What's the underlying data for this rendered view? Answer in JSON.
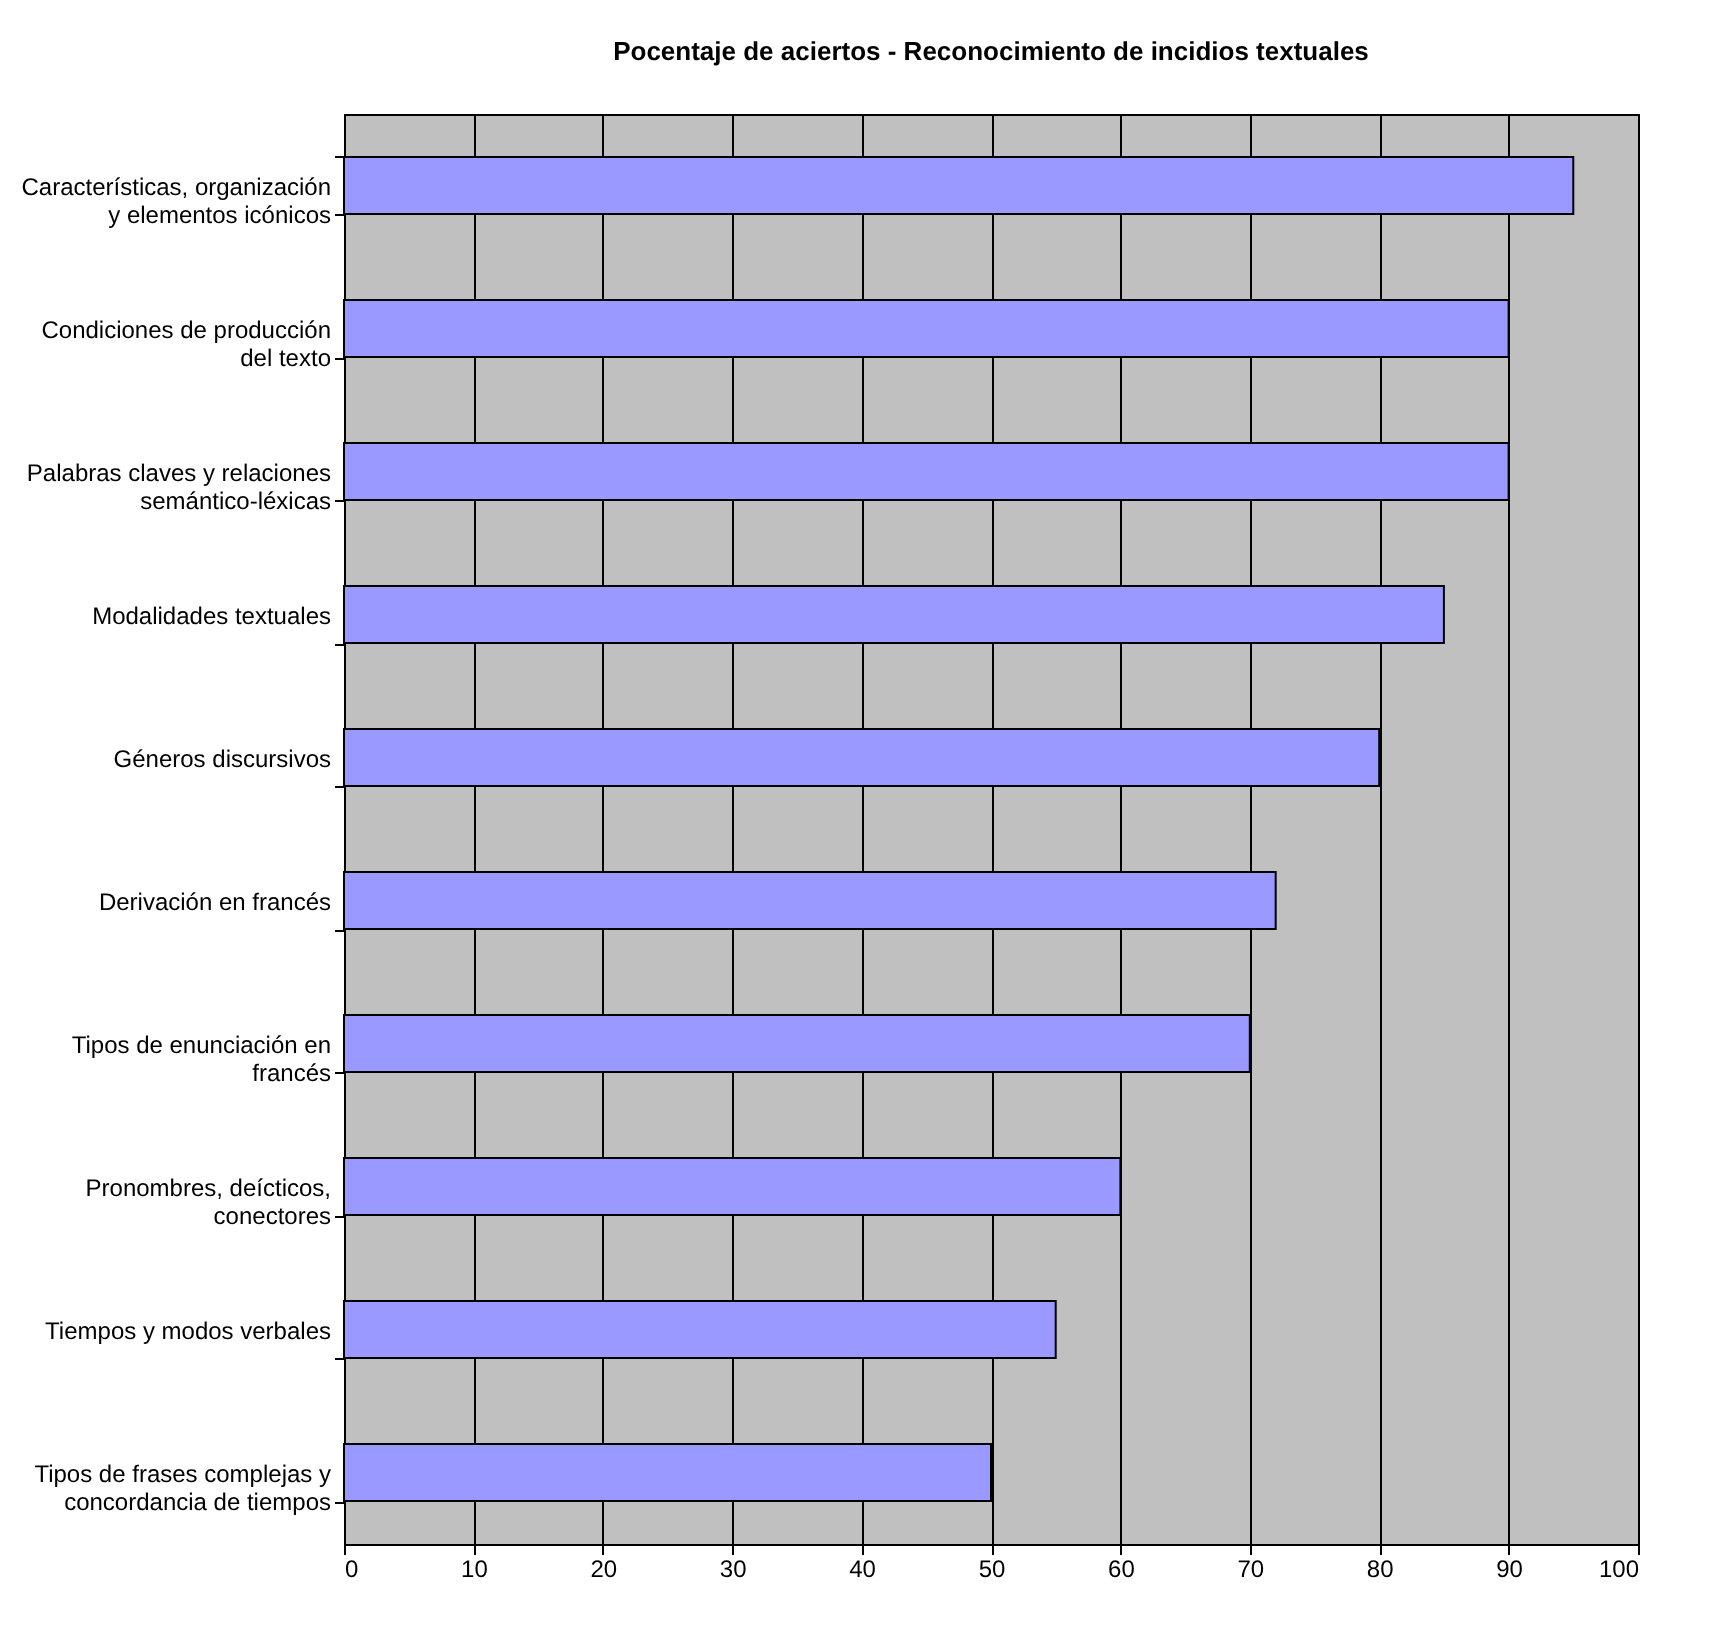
{
  "chart_data": {
    "type": "bar",
    "orientation": "horizontal",
    "title": "Pocentaje de aciertos - Reconocimiento de incidios textuales",
    "categories": [
      "Características, organización\ny elementos icónicos",
      "Condiciones de producción\ndel texto",
      "Palabras claves y relaciones\nsemántico-léxicas",
      "Modalidades textuales",
      "Géneros discursivos",
      "Derivación en  francés",
      "Tipos  de enunciación en\nfrancés",
      "Pronombres, deícticos,\nconectores",
      "Tiempos y modos  verbales",
      "Tipos  de frases complejas y\nconcordancia de tiempos"
    ],
    "values": [
      95,
      90,
      90,
      85,
      80,
      72,
      70,
      60,
      55,
      50
    ],
    "color": "#9999ff",
    "xlim": [
      0,
      100
    ],
    "xticks": [
      0,
      10,
      20,
      30,
      40,
      50,
      60,
      70,
      80,
      90,
      100
    ],
    "grid": "x"
  }
}
